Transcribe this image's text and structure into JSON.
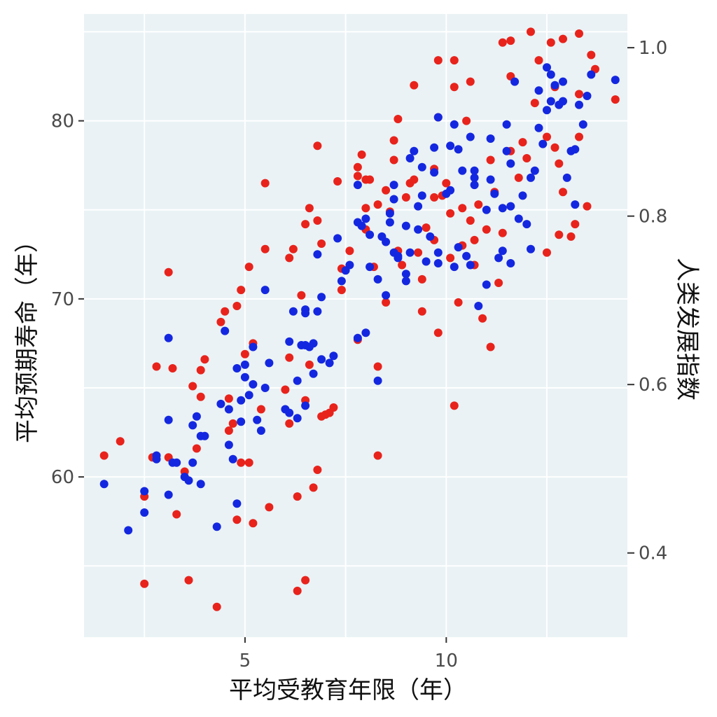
{
  "chart_data": {
    "type": "scatter",
    "xlabel": "平均受教育年限（年）",
    "ylabel": "平均预期寿命（年）",
    "y2label": "人类发展指数",
    "xlim": [
      1,
      14.5
    ],
    "ylim": [
      51,
      86
    ],
    "y2lim": [
      0.3,
      1.04
    ],
    "x_ticks": [
      5,
      10
    ],
    "y_ticks": [
      60,
      70,
      80
    ],
    "y2_ticks": [
      0.4,
      0.6,
      0.8,
      1.0
    ],
    "grid": true,
    "background": "#eaf2f5",
    "series": [
      {
        "color": "#e8231c",
        "points": [
          [
            1.5,
            61.2
          ],
          [
            1.9,
            62.0
          ],
          [
            2.5,
            54.0
          ],
          [
            2.5,
            58.9
          ],
          [
            2.8,
            66.2
          ],
          [
            2.7,
            61.1
          ],
          [
            3.1,
            71.5
          ],
          [
            3.1,
            61.1
          ],
          [
            3.2,
            66.1
          ],
          [
            3.3,
            57.9
          ],
          [
            3.5,
            60.3
          ],
          [
            3.6,
            54.2
          ],
          [
            3.7,
            65.1
          ],
          [
            3.8,
            61.6
          ],
          [
            3.9,
            64.5
          ],
          [
            3.9,
            66.0
          ],
          [
            4.0,
            66.6
          ],
          [
            4.3,
            52.7
          ],
          [
            4.4,
            68.7
          ],
          [
            4.5,
            69.3
          ],
          [
            4.6,
            64.4
          ],
          [
            4.6,
            62.6
          ],
          [
            4.7,
            63.0
          ],
          [
            4.8,
            69.6
          ],
          [
            4.8,
            57.6
          ],
          [
            4.9,
            60.8
          ],
          [
            4.9,
            70.5
          ],
          [
            5.0,
            66.9
          ],
          [
            5.1,
            60.8
          ],
          [
            5.1,
            71.8
          ],
          [
            5.2,
            57.4
          ],
          [
            5.2,
            67.5
          ],
          [
            5.4,
            63.8
          ],
          [
            5.5,
            72.8
          ],
          [
            5.5,
            76.5
          ],
          [
            5.6,
            58.3
          ],
          [
            6.0,
            64.9
          ],
          [
            6.1,
            63.0
          ],
          [
            6.1,
            66.7
          ],
          [
            6.1,
            72.3
          ],
          [
            6.2,
            72.8
          ],
          [
            6.3,
            58.9
          ],
          [
            6.3,
            53.6
          ],
          [
            6.4,
            70.2
          ],
          [
            6.5,
            54.2
          ],
          [
            6.5,
            64.3
          ],
          [
            6.5,
            74.2
          ],
          [
            6.6,
            75.1
          ],
          [
            6.6,
            66.3
          ],
          [
            6.7,
            59.4
          ],
          [
            6.8,
            60.4
          ],
          [
            6.8,
            74.4
          ],
          [
            6.8,
            78.6
          ],
          [
            6.9,
            73.1
          ],
          [
            6.9,
            63.4
          ],
          [
            7.0,
            63.5
          ],
          [
            7.1,
            63.6
          ],
          [
            7.2,
            63.9
          ],
          [
            7.3,
            76.6
          ],
          [
            7.4,
            70.5
          ],
          [
            7.4,
            71.7
          ],
          [
            7.6,
            72.7
          ],
          [
            7.8,
            77.4
          ],
          [
            7.8,
            76.9
          ],
          [
            7.8,
            67.7
          ],
          [
            7.9,
            78.1
          ],
          [
            8.0,
            76.7
          ],
          [
            8.0,
            75.1
          ],
          [
            8.0,
            73.9
          ],
          [
            8.1,
            76.7
          ],
          [
            8.2,
            71.8
          ],
          [
            8.3,
            75.3
          ],
          [
            8.3,
            66.2
          ],
          [
            8.3,
            61.2
          ],
          [
            8.5,
            76.1
          ],
          [
            8.5,
            69.8
          ],
          [
            8.6,
            74.9
          ],
          [
            8.7,
            77.8
          ],
          [
            8.7,
            78.9
          ],
          [
            8.8,
            80.1
          ],
          [
            8.8,
            72.7
          ],
          [
            8.9,
            71.9
          ],
          [
            9.0,
            75.7
          ],
          [
            9.1,
            76.5
          ],
          [
            9.2,
            76.7
          ],
          [
            9.2,
            82.0
          ],
          [
            9.3,
            72.6
          ],
          [
            9.4,
            69.3
          ],
          [
            9.4,
            71.1
          ],
          [
            9.5,
            74.0
          ],
          [
            9.7,
            75.7
          ],
          [
            9.7,
            77.3
          ],
          [
            9.7,
            73.3
          ],
          [
            9.8,
            80.2
          ],
          [
            9.8,
            68.1
          ],
          [
            9.8,
            83.4
          ],
          [
            9.9,
            75.8
          ],
          [
            10.0,
            76.5
          ],
          [
            10.1,
            72.3
          ],
          [
            10.1,
            74.8
          ],
          [
            10.2,
            83.4
          ],
          [
            10.2,
            81.9
          ],
          [
            10.2,
            64.0
          ],
          [
            10.3,
            69.8
          ],
          [
            10.4,
            73.0
          ],
          [
            10.4,
            75.1
          ],
          [
            10.5,
            80.0
          ],
          [
            10.6,
            82.2
          ],
          [
            10.6,
            74.4
          ],
          [
            10.7,
            71.9
          ],
          [
            10.7,
            73.3
          ],
          [
            10.8,
            75.3
          ],
          [
            10.9,
            68.9
          ],
          [
            11.0,
            73.9
          ],
          [
            11.1,
            67.3
          ],
          [
            11.1,
            77.8
          ],
          [
            11.2,
            76.0
          ],
          [
            11.3,
            70.9
          ],
          [
            11.4,
            84.4
          ],
          [
            11.4,
            73.7
          ],
          [
            11.6,
            78.3
          ],
          [
            11.6,
            82.5
          ],
          [
            11.6,
            84.5
          ],
          [
            11.8,
            76.8
          ],
          [
            11.9,
            78.8
          ],
          [
            12.0,
            77.9
          ],
          [
            12.1,
            85.0
          ],
          [
            12.2,
            81.0
          ],
          [
            12.3,
            83.4
          ],
          [
            12.5,
            79.1
          ],
          [
            12.5,
            72.6
          ],
          [
            12.6,
            84.4
          ],
          [
            12.7,
            81.9
          ],
          [
            12.7,
            78.5
          ],
          [
            12.8,
            77.6
          ],
          [
            12.8,
            73.6
          ],
          [
            12.9,
            76.0
          ],
          [
            12.9,
            84.6
          ],
          [
            13.1,
            73.5
          ],
          [
            13.2,
            74.2
          ],
          [
            13.3,
            79.1
          ],
          [
            13.3,
            81.5
          ],
          [
            13.3,
            84.9
          ],
          [
            13.5,
            75.2
          ],
          [
            13.6,
            83.7
          ],
          [
            13.7,
            82.9
          ],
          [
            14.2,
            81.2
          ]
        ]
      },
      {
        "color": "#1427e0",
        "points": [
          [
            1.5,
            59.6
          ],
          [
            2.1,
            57.0
          ],
          [
            2.5,
            59.2
          ],
          [
            2.5,
            58.0
          ],
          [
            2.8,
            61.0
          ],
          [
            2.8,
            61.2
          ],
          [
            3.1,
            67.8
          ],
          [
            3.1,
            63.2
          ],
          [
            3.1,
            59.0
          ],
          [
            3.2,
            60.8
          ],
          [
            3.3,
            60.8
          ],
          [
            3.5,
            60.0
          ],
          [
            3.6,
            59.8
          ],
          [
            3.7,
            60.8
          ],
          [
            3.7,
            62.9
          ],
          [
            3.8,
            63.4
          ],
          [
            3.9,
            59.6
          ],
          [
            3.9,
            62.3
          ],
          [
            4.0,
            62.3
          ],
          [
            4.3,
            57.2
          ],
          [
            4.4,
            64.1
          ],
          [
            4.5,
            68.2
          ],
          [
            4.6,
            61.8
          ],
          [
            4.6,
            63.8
          ],
          [
            4.7,
            61.0
          ],
          [
            4.8,
            58.5
          ],
          [
            4.8,
            66.1
          ],
          [
            4.9,
            63.1
          ],
          [
            4.9,
            64.3
          ],
          [
            5.0,
            66.3
          ],
          [
            5.0,
            65.6
          ],
          [
            5.1,
            64.6
          ],
          [
            5.2,
            65.2
          ],
          [
            5.2,
            67.3
          ],
          [
            5.3,
            63.2
          ],
          [
            5.4,
            62.6
          ],
          [
            5.5,
            65.0
          ],
          [
            5.5,
            70.5
          ],
          [
            5.6,
            66.4
          ],
          [
            6.0,
            63.8
          ],
          [
            6.1,
            63.6
          ],
          [
            6.1,
            67.6
          ],
          [
            6.2,
            69.3
          ],
          [
            6.3,
            63.3
          ],
          [
            6.3,
            65.4
          ],
          [
            6.4,
            67.4
          ],
          [
            6.5,
            69.2
          ],
          [
            6.5,
            64.0
          ],
          [
            6.5,
            67.4
          ],
          [
            6.5,
            69.4
          ],
          [
            6.6,
            67.3
          ],
          [
            6.7,
            65.8
          ],
          [
            6.7,
            67.5
          ],
          [
            6.8,
            72.5
          ],
          [
            6.8,
            69.3
          ],
          [
            6.9,
            70.1
          ],
          [
            6.9,
            66.6
          ],
          [
            7.1,
            66.4
          ],
          [
            7.2,
            66.8
          ],
          [
            7.3,
            73.4
          ],
          [
            7.4,
            71.0
          ],
          [
            7.5,
            71.6
          ],
          [
            7.6,
            71.9
          ],
          [
            7.8,
            74.3
          ],
          [
            7.8,
            76.4
          ],
          [
            7.8,
            67.8
          ],
          [
            7.9,
            74.1
          ],
          [
            8.0,
            74.5
          ],
          [
            8.0,
            68.1
          ],
          [
            8.1,
            73.6
          ],
          [
            8.1,
            71.8
          ],
          [
            8.3,
            71.1
          ],
          [
            8.3,
            65.4
          ],
          [
            8.4,
            73.5
          ],
          [
            8.5,
            73.2
          ],
          [
            8.5,
            70.2
          ],
          [
            8.6,
            74.8
          ],
          [
            8.6,
            74.3
          ],
          [
            8.7,
            72.6
          ],
          [
            8.7,
            75.6
          ],
          [
            8.7,
            76.4
          ],
          [
            8.8,
            72.3
          ],
          [
            8.8,
            72.4
          ],
          [
            9.0,
            74.1
          ],
          [
            9.0,
            71.4
          ],
          [
            9.0,
            71.0
          ],
          [
            9.1,
            77.9
          ],
          [
            9.1,
            72.6
          ],
          [
            9.2,
            78.3
          ],
          [
            9.3,
            73.9
          ],
          [
            9.3,
            75.2
          ],
          [
            9.4,
            75.8
          ],
          [
            9.4,
            77.4
          ],
          [
            9.5,
            72.1
          ],
          [
            9.6,
            73.5
          ],
          [
            9.7,
            78.5
          ],
          [
            9.7,
            77.1
          ],
          [
            9.8,
            80.2
          ],
          [
            9.8,
            72.6
          ],
          [
            9.8,
            72.0
          ],
          [
            10.0,
            75.9
          ],
          [
            10.1,
            76.1
          ],
          [
            10.1,
            78.6
          ],
          [
            10.2,
            79.8
          ],
          [
            10.2,
            71.8
          ],
          [
            10.3,
            72.9
          ],
          [
            10.3,
            78.4
          ],
          [
            10.4,
            77.2
          ],
          [
            10.5,
            72.4
          ],
          [
            10.6,
            79.1
          ],
          [
            10.6,
            71.9
          ],
          [
            10.7,
            76.4
          ],
          [
            10.7,
            77.2
          ],
          [
            10.7,
            76.8
          ],
          [
            10.8,
            69.6
          ],
          [
            11.0,
            75.0
          ],
          [
            11.0,
            70.8
          ],
          [
            11.1,
            76.7
          ],
          [
            11.1,
            79.0
          ],
          [
            11.2,
            75.9
          ],
          [
            11.3,
            72.3
          ],
          [
            11.4,
            75.1
          ],
          [
            11.4,
            72.7
          ],
          [
            11.5,
            78.3
          ],
          [
            11.5,
            79.8
          ],
          [
            11.6,
            77.6
          ],
          [
            11.6,
            72.0
          ],
          [
            11.6,
            75.2
          ],
          [
            11.7,
            82.2
          ],
          [
            11.8,
            74.5
          ],
          [
            11.9,
            75.8
          ],
          [
            12.0,
            74.2
          ],
          [
            12.1,
            72.8
          ],
          [
            12.1,
            76.8
          ],
          [
            12.2,
            77.2
          ],
          [
            12.3,
            81.7
          ],
          [
            12.3,
            79.6
          ],
          [
            12.4,
            78.7
          ],
          [
            12.5,
            80.6
          ],
          [
            12.5,
            83.0
          ],
          [
            12.6,
            82.6
          ],
          [
            12.6,
            81.1
          ],
          [
            12.7,
            82.0
          ],
          [
            12.8,
            80.9
          ],
          [
            12.9,
            81.1
          ],
          [
            12.9,
            82.2
          ],
          [
            13.0,
            76.8
          ],
          [
            13.1,
            78.3
          ],
          [
            13.2,
            78.4
          ],
          [
            13.2,
            75.3
          ],
          [
            13.3,
            80.9
          ],
          [
            13.4,
            79.8
          ],
          [
            13.5,
            81.4
          ],
          [
            13.6,
            82.6
          ],
          [
            14.2,
            82.3
          ]
        ]
      }
    ]
  }
}
